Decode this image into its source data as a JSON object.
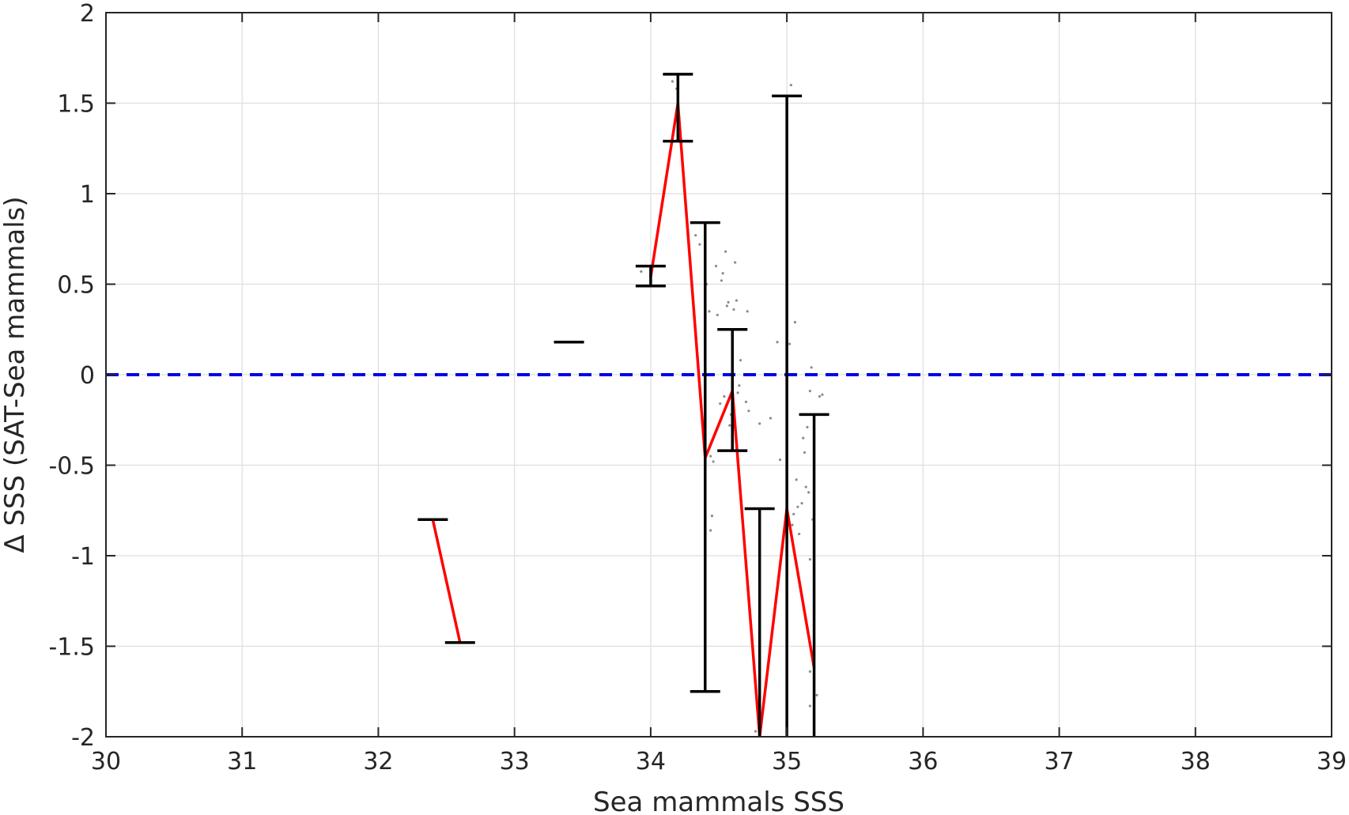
{
  "chart_data": {
    "type": "line",
    "xlabel": "Sea mammals SSS",
    "ylabel": "Δ SSS (SAT-Sea mammals)",
    "xlim": [
      30,
      39
    ],
    "ylim": [
      -2,
      2
    ],
    "x_ticks": [
      "30",
      "31",
      "32",
      "33",
      "34",
      "35",
      "36",
      "37",
      "38",
      "39"
    ],
    "y_ticks": [
      "-2",
      "-1.5",
      "-1",
      "-0.5",
      "0",
      "0.5",
      "1",
      "1.5",
      "2"
    ],
    "grid": true,
    "reference_line": {
      "y": 0,
      "style": "dashed",
      "color": "#0000e6"
    },
    "series": [
      {
        "style": "line",
        "color": "#ff0000",
        "segments": [
          [
            {
              "x": 32.4,
              "y": -0.8
            },
            {
              "x": 32.6,
              "y": -1.48
            }
          ],
          [
            {
              "x": 34.0,
              "y": 0.54
            },
            {
              "x": 34.2,
              "y": 1.5
            },
            {
              "x": 34.4,
              "y": -0.46
            },
            {
              "x": 34.6,
              "y": -0.09
            },
            {
              "x": 34.8,
              "y": -2.0
            },
            {
              "x": 35.0,
              "y": -0.74
            },
            {
              "x": 35.2,
              "y": -1.62
            }
          ]
        ]
      },
      {
        "style": "errorbar",
        "color": "#000000",
        "bars": [
          {
            "x": 32.4,
            "low": -0.8,
            "high": -0.8
          },
          {
            "x": 32.6,
            "low": -1.48,
            "high": -1.48
          },
          {
            "x": 33.4,
            "low": 0.18,
            "high": 0.18
          },
          {
            "x": 34.0,
            "low": 0.49,
            "high": 0.6
          },
          {
            "x": 34.2,
            "low": 1.29,
            "high": 1.66
          },
          {
            "x": 34.4,
            "low": -1.75,
            "high": 0.84
          },
          {
            "x": 34.6,
            "low": -0.42,
            "high": 0.25
          },
          {
            "x": 34.8,
            "low": -2.0,
            "high": -0.74
          },
          {
            "x": 35.0,
            "low": -2.0,
            "high": 1.54
          },
          {
            "x": 35.2,
            "low": -2.0,
            "high": -0.22
          }
        ]
      },
      {
        "style": "scatter",
        "color": "#8c8c8c",
        "points": [
          [
            33.93,
            0.57
          ],
          [
            34.16,
            1.62
          ],
          [
            34.19,
            1.58
          ],
          [
            34.33,
            0.77
          ],
          [
            34.36,
            0.72
          ],
          [
            34.41,
            0.5
          ],
          [
            34.43,
            0.35
          ],
          [
            34.44,
            -0.45
          ],
          [
            34.44,
            -0.86
          ],
          [
            34.45,
            -0.78
          ],
          [
            34.46,
            -0.48
          ],
          [
            34.48,
            0.6
          ],
          [
            34.49,
            0.33
          ],
          [
            34.51,
            -0.16
          ],
          [
            34.52,
            0.52
          ],
          [
            34.53,
            0.56
          ],
          [
            34.54,
            -0.12
          ],
          [
            34.55,
            0.68
          ],
          [
            34.56,
            0.38
          ],
          [
            34.57,
            0.4
          ],
          [
            34.58,
            -0.28
          ],
          [
            34.59,
            -0.22
          ],
          [
            34.6,
            0.03
          ],
          [
            34.61,
            0.36
          ],
          [
            34.62,
            0.62
          ],
          [
            34.63,
            0.41
          ],
          [
            34.64,
            -0.1
          ],
          [
            34.65,
            -0.06
          ],
          [
            34.66,
            0.08
          ],
          [
            34.7,
            -0.15
          ],
          [
            34.71,
            0.35
          ],
          [
            34.72,
            -0.2
          ],
          [
            34.77,
            -1.97
          ],
          [
            34.8,
            -0.27
          ],
          [
            34.88,
            -0.24
          ],
          [
            34.93,
            0.18
          ],
          [
            34.95,
            -0.47
          ],
          [
            34.97,
            -0.95
          ],
          [
            35.0,
            0.33
          ],
          [
            35.02,
            0.17
          ],
          [
            35.03,
            1.6
          ],
          [
            35.04,
            -0.83
          ],
          [
            35.05,
            -0.77
          ],
          [
            35.06,
            0.29
          ],
          [
            35.07,
            -0.58
          ],
          [
            35.08,
            -0.73
          ],
          [
            35.09,
            -0.88
          ],
          [
            35.11,
            -0.71
          ],
          [
            35.12,
            -0.35
          ],
          [
            35.13,
            -0.43
          ],
          [
            35.14,
            -0.62
          ],
          [
            35.15,
            -0.29
          ],
          [
            35.16,
            -0.65
          ],
          [
            35.17,
            -0.09
          ],
          [
            35.17,
            -1.02
          ],
          [
            35.17,
            -1.64
          ],
          [
            35.17,
            -1.83
          ],
          [
            35.18,
            0.04
          ],
          [
            35.19,
            -0.8
          ],
          [
            35.2,
            -1.55
          ],
          [
            35.22,
            -1.77
          ],
          [
            35.24,
            -0.12
          ],
          [
            35.26,
            -0.11
          ]
        ]
      }
    ]
  }
}
